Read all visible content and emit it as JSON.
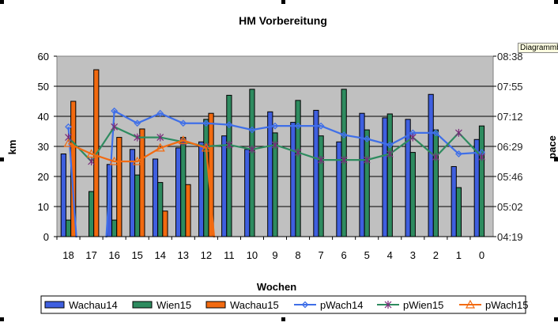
{
  "chart_data": {
    "type": "bar+line",
    "title": "HM Vorbereitung",
    "xlabel": "Wochen",
    "ylabel": "km",
    "y2label": "pace",
    "ylim": [
      0,
      60
    ],
    "yticks": [
      "0",
      "10",
      "20",
      "30",
      "40",
      "50",
      "60"
    ],
    "y2ticks": [
      "04:19",
      "05:02",
      "05:46",
      "06:29",
      "07:12",
      "07:55",
      "08:38"
    ],
    "categories": [
      "18",
      "17",
      "16",
      "15",
      "14",
      "13",
      "12",
      "11",
      "10",
      "9",
      "8",
      "7",
      "6",
      "5",
      "4",
      "3",
      "2",
      "1",
      "0"
    ],
    "series": [
      {
        "name": "Wachau14",
        "type": "bar",
        "color": "#3f5fdf",
        "values": [
          27.5,
          0,
          24,
          29,
          25.8,
          29.5,
          31.5,
          33.5,
          29,
          41.5,
          38,
          42,
          31.5,
          41,
          39.5,
          39,
          47.3,
          23.3,
          32.3
        ]
      },
      {
        "name": "Wien15",
        "type": "bar",
        "color": "#2e8b5f",
        "values": [
          5.5,
          15,
          5.5,
          20.5,
          18,
          33,
          39,
          47,
          49,
          34.5,
          45.3,
          33.5,
          49,
          35.5,
          40.8,
          28,
          35.5,
          16.3,
          36.8
        ]
      },
      {
        "name": "Wachau15",
        "type": "bar",
        "color": "#f26a10",
        "values": [
          45,
          55.5,
          33,
          35.8,
          8.5,
          17.3,
          41,
          null,
          null,
          null,
          null,
          null,
          null,
          null,
          null,
          null,
          null,
          null,
          null
        ]
      },
      {
        "name": "pWach14",
        "type": "line",
        "axis": "secondary",
        "marker": "diamond",
        "color": "#3f6fe8",
        "values": [
          36.5,
          0,
          41.8,
          37.7,
          41,
          37.7,
          37.7,
          37.2,
          35.5,
          36.8,
          36.8,
          36.8,
          33.8,
          32.5,
          30.5,
          34.5,
          34.5,
          27.5,
          28
        ]
      },
      {
        "name": "pWien15",
        "type": "line",
        "axis": "secondary",
        "marker": "star",
        "color": "#2e8b5f",
        "values": [
          33,
          25,
          36.5,
          33,
          33,
          31.5,
          30,
          30.5,
          29,
          30.5,
          28,
          25.5,
          25.5,
          25.5,
          27.5,
          33,
          26.5,
          34.5,
          26.5
        ]
      },
      {
        "name": "pWach15",
        "type": "line",
        "axis": "secondary",
        "marker": "triangle",
        "color": "#f26a10",
        "values": [
          31,
          27.5,
          25,
          25,
          29.5,
          32,
          29.5,
          0,
          null,
          null,
          null,
          null,
          null,
          null,
          null,
          null,
          null,
          null,
          null
        ]
      }
    ],
    "legend": "bottom",
    "grid": true
  },
  "tooltip": "Diagrammbereich"
}
